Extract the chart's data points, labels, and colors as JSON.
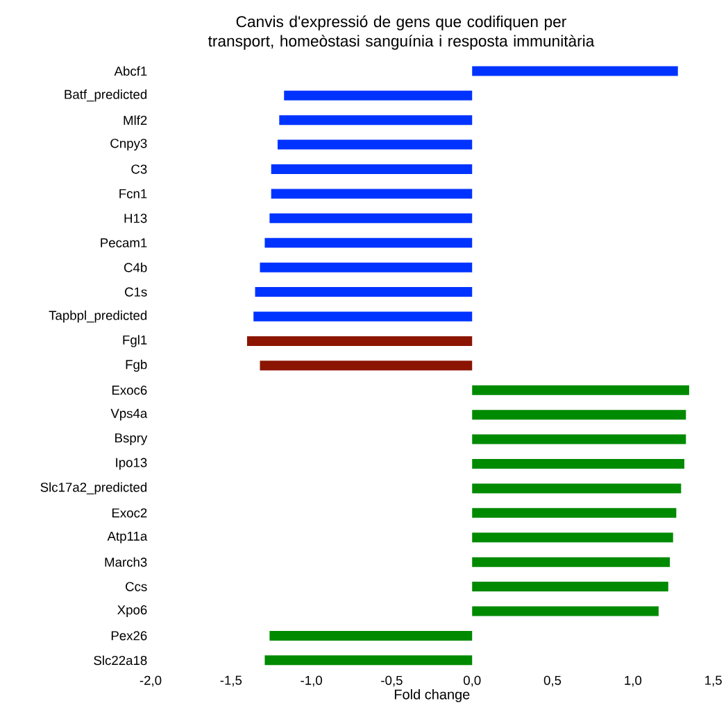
{
  "chart_data": {
    "type": "bar",
    "orientation": "horizontal",
    "title": "Canvis d'expressió de gens que codifiquen per transport, homeòstasi sanguínia i resposta immunitària",
    "xlabel": "Fold change",
    "categories": [
      "Abcf1",
      "Batf_predicted",
      "Mlf2",
      "Cnpy3",
      "C3",
      "Fcn1",
      "H13",
      "Pecam1",
      "C4b",
      "C1s",
      "Tapbpl_predicted",
      "Fgl1",
      "Fgb",
      "Exoc6",
      "Vps4a",
      "Bspry",
      "Ipo13",
      "Slc17a2_predicted",
      "Exoc2",
      "Atp11a",
      "March3",
      "Ccs",
      "Xpo6",
      "Pex26",
      "Slc22a18"
    ],
    "values": [
      1.28,
      -1.17,
      -1.2,
      -1.21,
      -1.25,
      -1.25,
      -1.26,
      -1.29,
      -1.32,
      -1.35,
      -1.36,
      -1.4,
      -1.32,
      1.35,
      1.33,
      1.33,
      1.32,
      1.3,
      1.27,
      1.25,
      1.23,
      1.22,
      1.16,
      -1.26,
      -1.29
    ],
    "colors": [
      "#0033ff",
      "#0033ff",
      "#0033ff",
      "#0033ff",
      "#0033ff",
      "#0033ff",
      "#0033ff",
      "#0033ff",
      "#0033ff",
      "#0033ff",
      "#0033ff",
      "#8b1500",
      "#8b1500",
      "#008a00",
      "#008a00",
      "#008a00",
      "#008a00",
      "#008a00",
      "#008a00",
      "#008a00",
      "#008a00",
      "#008a00",
      "#008a00",
      "#008a00",
      "#008a00"
    ],
    "xlim": [
      -2,
      1.5
    ],
    "xticks": [
      {
        "value": -2,
        "label": "-2,0"
      },
      {
        "value": -1.5,
        "label": "-1,5"
      },
      {
        "value": -1,
        "label": "-1,0"
      },
      {
        "value": -0.5,
        "label": "-0,5"
      },
      {
        "value": 0,
        "label": "0,0"
      },
      {
        "value": 0.5,
        "label": "0,5"
      },
      {
        "value": 1,
        "label": "1,0"
      },
      {
        "value": 1.5,
        "label": "1,5"
      }
    ],
    "grid": false
  }
}
